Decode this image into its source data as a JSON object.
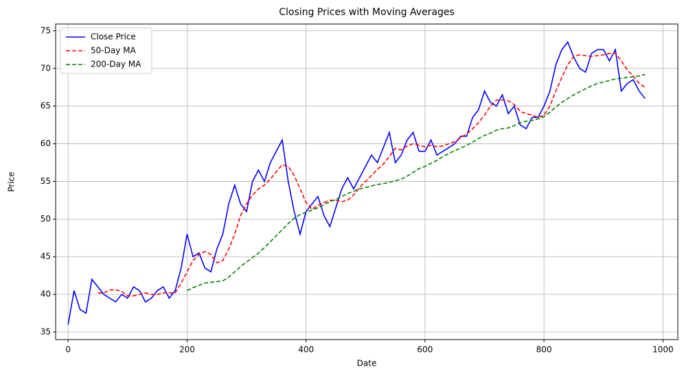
{
  "chart_data": {
    "type": "line",
    "title": "Closing Prices with Moving Averages",
    "xlabel": "Date",
    "ylabel": "Price",
    "x": [
      0,
      10,
      20,
      30,
      40,
      50,
      60,
      70,
      80,
      90,
      100,
      110,
      120,
      130,
      140,
      150,
      160,
      170,
      180,
      190,
      200,
      210,
      220,
      230,
      240,
      250,
      260,
      270,
      280,
      290,
      300,
      310,
      320,
      330,
      340,
      350,
      360,
      370,
      380,
      390,
      400,
      410,
      420,
      430,
      440,
      450,
      460,
      470,
      480,
      490,
      500,
      510,
      520,
      530,
      540,
      550,
      560,
      570,
      580,
      590,
      600,
      610,
      620,
      630,
      640,
      650,
      660,
      670,
      680,
      690,
      700,
      710,
      720,
      730,
      740,
      750,
      760,
      770,
      780,
      790,
      800,
      810,
      820,
      830,
      840,
      850,
      860,
      870,
      880,
      890,
      900,
      910,
      920,
      930,
      940,
      950,
      960,
      970
    ],
    "series": [
      {
        "name": "Close Price",
        "color": "#0000ff",
        "style": "solid",
        "values": [
          36,
          40.5,
          38,
          37.5,
          42,
          41,
          40,
          39.5,
          39,
          40,
          39.5,
          41,
          40.5,
          39,
          39.5,
          40.5,
          41,
          39.5,
          40.5,
          43.5,
          48,
          45,
          45.5,
          43.5,
          43,
          46,
          48,
          52,
          54.5,
          52,
          51,
          55,
          56.5,
          55,
          57.5,
          59,
          60.5,
          55,
          51,
          48,
          51,
          52,
          53,
          50.5,
          49,
          51.5,
          54,
          55.5,
          54,
          55.5,
          57,
          58.5,
          57.5,
          59.5,
          61.5,
          57.5,
          58.5,
          60.5,
          61.5,
          59,
          59,
          60.5,
          58.5,
          59,
          59.5,
          60,
          61,
          61,
          63.5,
          64.5,
          67,
          65.5,
          65,
          66.5,
          64,
          65,
          62.5,
          62,
          63.5,
          63.5,
          65,
          67,
          70.5,
          72.5,
          73.5,
          71.5,
          70,
          69.5,
          72,
          72.5,
          72.5,
          71,
          72.5,
          67,
          68,
          68.5,
          67,
          66
        ]
      },
      {
        "name": "50-Day MA",
        "color": "#ff0000",
        "style": "dashed",
        "values": [
          null,
          null,
          null,
          null,
          null,
          40.2,
          40.2,
          40.6,
          40.6,
          40.4,
          39.8,
          39.8,
          40,
          40.2,
          40,
          40,
          40.2,
          40.2,
          40.2,
          41.5,
          43,
          44.5,
          45.3,
          45.7,
          45.3,
          44.2,
          44.5,
          46,
          48,
          50.5,
          52,
          53.2,
          54,
          54.5,
          55.3,
          56.3,
          57.2,
          57,
          55.8,
          54,
          52.2,
          51.3,
          51.8,
          52.2,
          52.5,
          52.5,
          52.3,
          52.5,
          53.2,
          54.2,
          55,
          55.8,
          56.6,
          57.3,
          58.3,
          59.4,
          59.2,
          59.7,
          60,
          59.8,
          59.6,
          59.8,
          59.6,
          59.7,
          60,
          60.3,
          60.8,
          61.3,
          62,
          62.8,
          63.8,
          65,
          65.8,
          65.8,
          65.7,
          65.2,
          64.3,
          64,
          63.8,
          63.5,
          63.8,
          65,
          67,
          68.8,
          70.5,
          71.6,
          71.8,
          71.7,
          71.6,
          71.7,
          71.8,
          72,
          72,
          71,
          69.8,
          69,
          68,
          67.5
        ]
      },
      {
        "name": "200-Day MA",
        "color": "#008000",
        "style": "dashed",
        "values": [
          null,
          null,
          null,
          null,
          null,
          null,
          null,
          null,
          null,
          null,
          null,
          null,
          null,
          null,
          null,
          null,
          null,
          null,
          null,
          null,
          40.5,
          40.9,
          41.2,
          41.5,
          41.6,
          41.7,
          41.8,
          42.3,
          43,
          43.7,
          44.3,
          44.9,
          45.5,
          46.2,
          47,
          47.8,
          48.6,
          49.4,
          50.1,
          50.6,
          50.9,
          51.2,
          51.5,
          51.9,
          52.3,
          52.6,
          53,
          53.4,
          53.7,
          54,
          54.2,
          54.4,
          54.6,
          54.7,
          54.9,
          55.1,
          55.3,
          55.7,
          56.2,
          56.7,
          57,
          57.4,
          57.8,
          58.3,
          58.7,
          59.1,
          59.4,
          59.8,
          60.2,
          60.7,
          61.1,
          61.4,
          61.8,
          62,
          62.1,
          62.4,
          62.8,
          63,
          63.1,
          63.3,
          63.6,
          64.2,
          64.9,
          65.5,
          66,
          66.5,
          66.9,
          67.3,
          67.7,
          68,
          68.2,
          68.4,
          68.6,
          68.7,
          68.8,
          68.9,
          69,
          69.2
        ]
      }
    ],
    "xlim": [
      -21,
      1025
    ],
    "ylim": [
      34,
      75.9
    ],
    "xticks": [
      0,
      200,
      400,
      600,
      800,
      1000
    ],
    "yticks": [
      35,
      40,
      45,
      50,
      55,
      60,
      65,
      70,
      75
    ],
    "grid": true,
    "legend": "upper left"
  }
}
